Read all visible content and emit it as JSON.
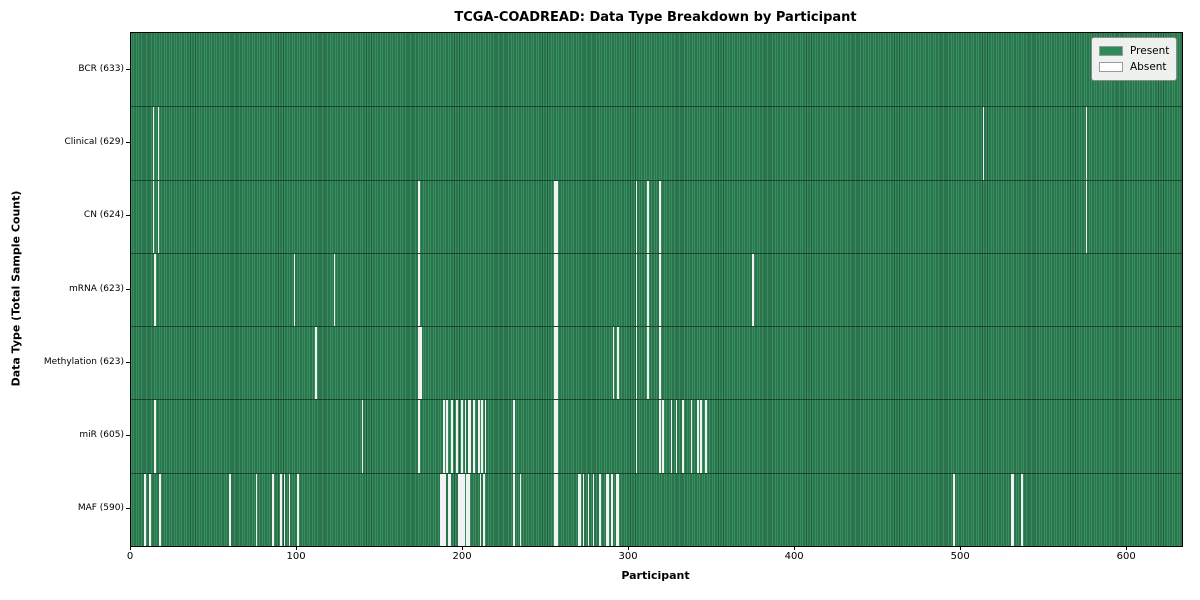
{
  "chart_data": {
    "type": "heatmap",
    "title": "TCGA-COADREAD: Data Type Breakdown by Participant",
    "xlabel": "Participant",
    "ylabel": "Data Type (Total Sample Count)",
    "x_ticks": [
      0,
      100,
      200,
      300,
      400,
      500,
      600
    ],
    "xlim": [
      0,
      633
    ],
    "participants_total": 633,
    "grid": false,
    "legend_position": "upper right",
    "legend": [
      {
        "label": "Present",
        "color": "#2e8b57"
      },
      {
        "label": "Absent",
        "color": "#ffffff"
      }
    ],
    "colors": {
      "present": "#2e8b57",
      "present_edge": "#1f5a3b",
      "absent": "#f2f2f2"
    },
    "rows": [
      {
        "label": "BCR (633)",
        "name": "BCR",
        "present_count": 633,
        "absent_participants": []
      },
      {
        "label": "Clinical (629)",
        "name": "Clinical",
        "present_count": 629,
        "absent_participants": [
          13,
          16,
          513,
          575
        ]
      },
      {
        "label": "CN (624)",
        "name": "CN",
        "present_count": 624,
        "absent_participants": [
          13,
          16,
          173,
          255,
          256,
          304,
          311,
          318,
          575
        ]
      },
      {
        "label": "mRNA (623)",
        "name": "mRNA",
        "present_count": 623,
        "absent_participants": [
          14,
          98,
          122,
          173,
          255,
          256,
          304,
          311,
          318,
          374
        ]
      },
      {
        "label": "Methylation (623)",
        "name": "Methylation",
        "present_count": 623,
        "absent_participants": [
          111,
          173,
          174,
          255,
          256,
          290,
          293,
          304,
          311,
          318
        ]
      },
      {
        "label": "miR (605)",
        "name": "miR",
        "present_count": 605,
        "absent_participants": [
          14,
          139,
          173,
          188,
          190,
          193,
          196,
          199,
          201,
          203,
          204,
          206,
          209,
          211,
          213,
          230,
          255,
          256,
          304,
          318,
          320,
          325,
          328,
          332,
          337,
          341,
          343,
          346
        ]
      },
      {
        "label": "MAF (590)",
        "name": "MAF",
        "present_count": 590,
        "absent_participants": [
          8,
          11,
          17,
          59,
          75,
          85,
          90,
          92,
          95,
          100,
          186,
          187,
          188,
          189,
          191,
          192,
          197,
          198,
          199,
          200,
          202,
          203,
          210,
          212,
          230,
          234,
          255,
          256,
          269,
          270,
          272,
          275,
          278,
          282,
          286,
          287,
          289,
          292,
          293,
          495,
          530,
          531,
          536
        ]
      }
    ]
  }
}
